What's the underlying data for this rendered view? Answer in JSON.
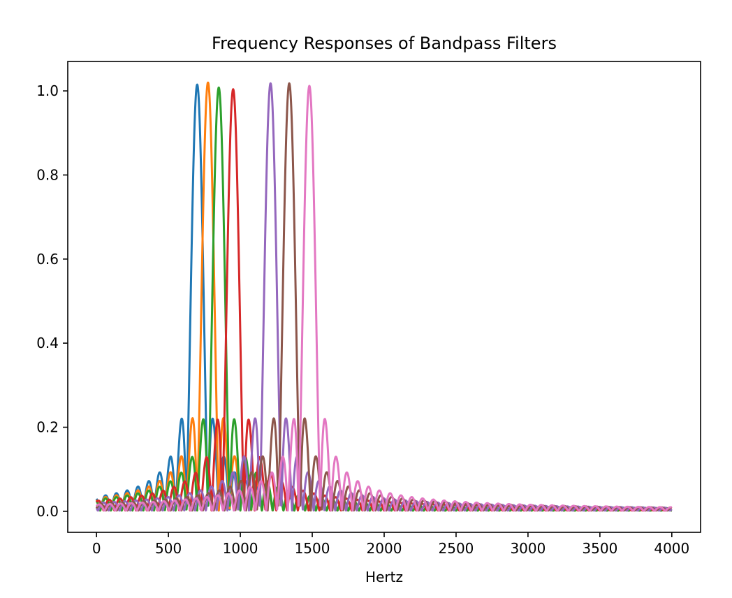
{
  "chart_data": {
    "type": "line",
    "title": "Frequency Responses of Bandpass Filters",
    "xlabel": "Hertz",
    "ylabel": "",
    "xlim": [
      -200,
      4200
    ],
    "ylim": [
      -0.05,
      1.07
    ],
    "xticks": [
      0,
      500,
      1000,
      1500,
      2000,
      2500,
      3000,
      3500,
      4000
    ],
    "yticks": [
      0.0,
      0.2,
      0.4,
      0.6,
      0.8,
      1.0
    ],
    "xtick_labels": [
      "0",
      "500",
      "1000",
      "1500",
      "2000",
      "2500",
      "3000",
      "3500",
      "4000"
    ],
    "ytick_labels": [
      "0.0",
      "0.2",
      "0.4",
      "0.6",
      "0.8",
      "1.0"
    ],
    "grid": false,
    "legend": "none",
    "series": [
      {
        "center": 700,
        "peak": 1.015,
        "color": "#1f77b4"
      },
      {
        "center": 775,
        "peak": 1.02,
        "color": "#ff7f0e"
      },
      {
        "center": 850,
        "peak": 1.008,
        "color": "#2ca02c"
      },
      {
        "center": 950,
        "peak": 1.004,
        "color": "#d62728"
      },
      {
        "center": 1210,
        "peak": 1.018,
        "color": "#9467bd"
      },
      {
        "center": 1340,
        "peak": 1.018,
        "color": "#8c564b"
      },
      {
        "center": 1480,
        "peak": 1.012,
        "color": "#e377c2"
      }
    ]
  }
}
